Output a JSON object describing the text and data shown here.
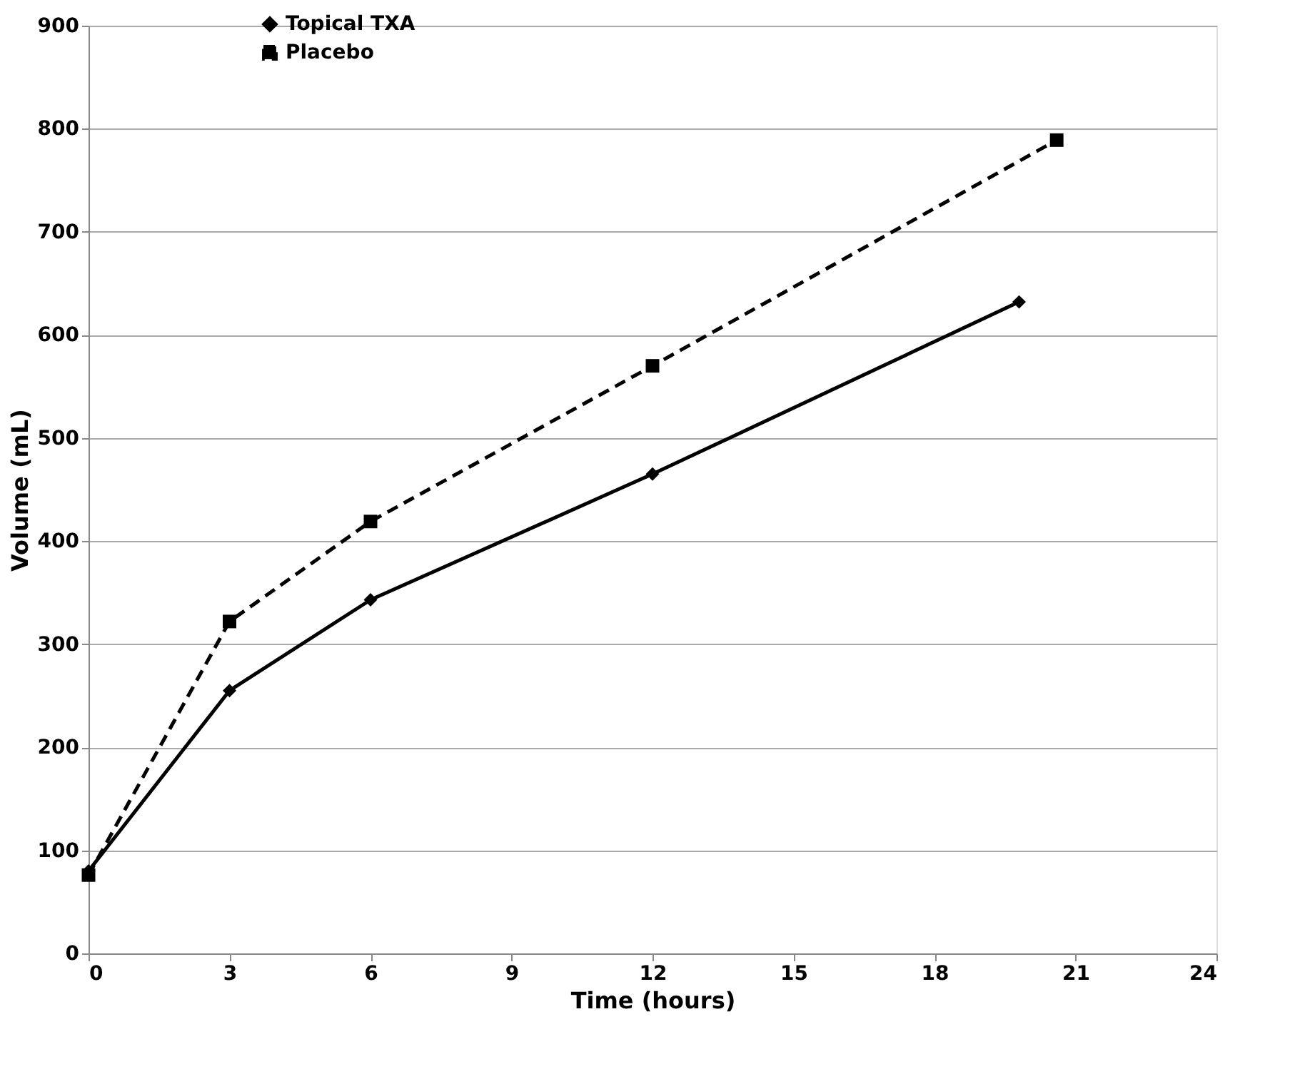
{
  "chart_data": {
    "type": "line",
    "xlabel": "Time (hours)",
    "ylabel": "Volume (mL)",
    "xlim": [
      0,
      24
    ],
    "xticks": [
      0,
      3,
      6,
      9,
      12,
      15,
      18,
      21,
      24
    ],
    "ylim": [
      0,
      900
    ],
    "yticks": [
      0,
      100,
      200,
      300,
      400,
      500,
      600,
      700,
      800,
      900
    ],
    "grid": "y",
    "legend": "top left",
    "series": [
      {
        "name": "Topical TXA",
        "color": "#000000",
        "x": [
          0,
          3,
          6,
          12,
          19.8
        ],
        "values": [
          80,
          255,
          343,
          465,
          632
        ],
        "marker": "diamond",
        "line_style": "solid"
      },
      {
        "name": "Placebo",
        "color": "#000000",
        "x": [
          0,
          3,
          6,
          12,
          20.6
        ],
        "values": [
          76,
          322,
          419,
          570,
          789
        ],
        "marker": "square",
        "line_style": "dashed"
      }
    ]
  }
}
